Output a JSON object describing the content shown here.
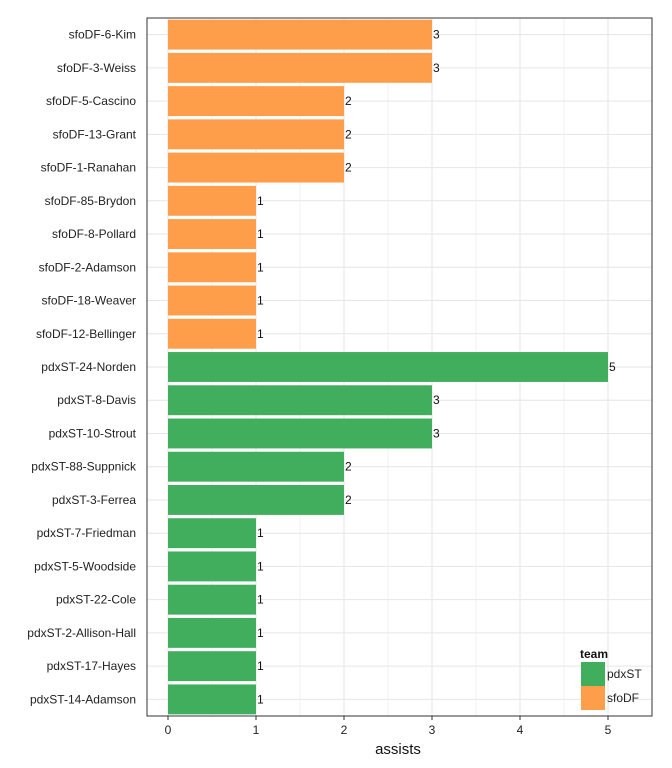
{
  "chart_data": {
    "type": "bar",
    "orientation": "horizontal",
    "xlabel": "assists",
    "xlim": [
      0,
      5.5
    ],
    "xticks": [
      0,
      1,
      2,
      3,
      4,
      5
    ],
    "grid": true,
    "legend": {
      "title": "team",
      "placement": "bottom-right",
      "entries": [
        {
          "name": "pdxST",
          "color": "#41ae5e"
        },
        {
          "name": "sfoDF",
          "color": "#ff9e4a"
        }
      ]
    },
    "categories": [
      "sfoDF-6-Kim",
      "sfoDF-3-Weiss",
      "sfoDF-5-Cascino",
      "sfoDF-13-Grant",
      "sfoDF-1-Ranahan",
      "sfoDF-85-Brydon",
      "sfoDF-8-Pollard",
      "sfoDF-2-Adamson",
      "sfoDF-18-Weaver",
      "sfoDF-12-Bellinger",
      "pdxST-24-Norden",
      "pdxST-8-Davis",
      "pdxST-10-Strout",
      "pdxST-88-Suppnick",
      "pdxST-3-Ferrea",
      "pdxST-7-Friedman",
      "pdxST-5-Woodside",
      "pdxST-22-Cole",
      "pdxST-2-Allison-Hall",
      "pdxST-17-Hayes",
      "pdxST-14-Adamson"
    ],
    "values": [
      3,
      3,
      2,
      2,
      2,
      1,
      1,
      1,
      1,
      1,
      5,
      3,
      3,
      2,
      2,
      1,
      1,
      1,
      1,
      1,
      1
    ],
    "teams": [
      "sfoDF",
      "sfoDF",
      "sfoDF",
      "sfoDF",
      "sfoDF",
      "sfoDF",
      "sfoDF",
      "sfoDF",
      "sfoDF",
      "sfoDF",
      "pdxST",
      "pdxST",
      "pdxST",
      "pdxST",
      "pdxST",
      "pdxST",
      "pdxST",
      "pdxST",
      "pdxST",
      "pdxST",
      "pdxST"
    ]
  }
}
